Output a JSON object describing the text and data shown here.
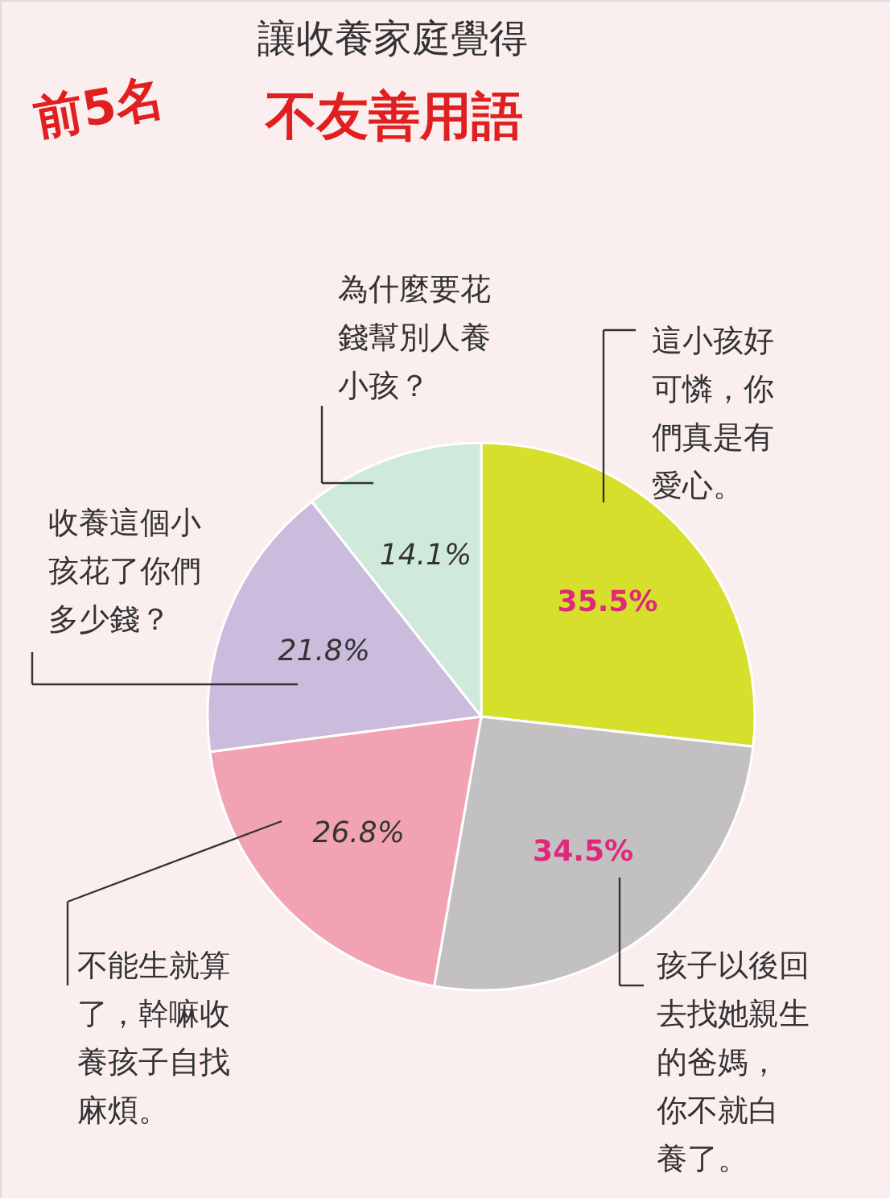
{
  "chart_data": {
    "type": "pie",
    "title": "讓收養家庭覺得",
    "subtitle": "不友善用語",
    "annotations": [
      "前5名"
    ],
    "categories": [
      "這小孩好可憐，你們真是有愛心。",
      "孩子以後回去找她親生的爸媽，你不就白養了。",
      "不能生就算了，幹嘛收養孩子自找麻煩。",
      "收養這個小孩花了你們多少錢？",
      "為什麼要花錢幫別人養小孩？"
    ],
    "values": [
      35.5,
      34.5,
      26.8,
      21.8,
      14.1
    ],
    "value_labels": [
      "35.5%",
      "34.5%",
      "26.8%",
      "21.8%",
      "14.1%"
    ],
    "colors": [
      "#d6e02c",
      "#c2c0c1",
      "#f2a3b3",
      "#cbbbdc",
      "#cfe9db"
    ]
  }
}
